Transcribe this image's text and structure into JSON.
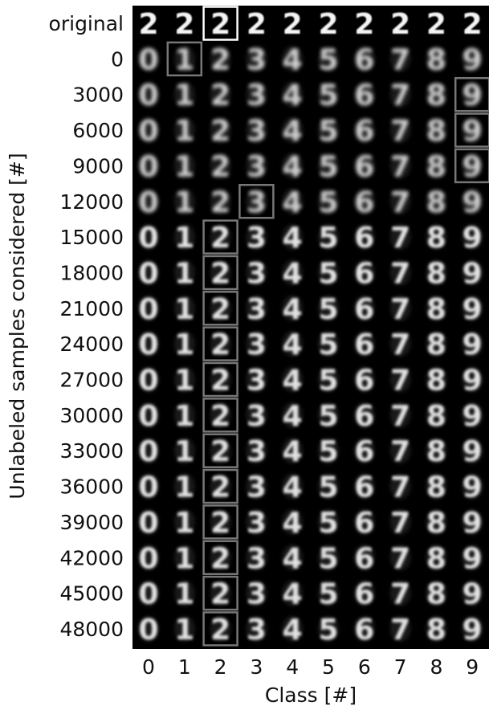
{
  "chart_data": {
    "type": "heatmap",
    "title": "",
    "xlabel": "Class [#]",
    "ylabel": "Unlabeled samples considered [#]",
    "x_categories": [
      "0",
      "1",
      "2",
      "3",
      "4",
      "5",
      "6",
      "7",
      "8",
      "9"
    ],
    "y_categories": [
      "original",
      "0",
      "3000",
      "6000",
      "9000",
      "12000",
      "15000",
      "18000",
      "21000",
      "24000",
      "27000",
      "30000",
      "33000",
      "36000",
      "39000",
      "42000",
      "45000",
      "48000"
    ],
    "cell_content": "grayscale handwritten digit image for each class",
    "background_color": "#000000",
    "highlight_colors": {
      "original": "#ffffff",
      "other": "#777777"
    },
    "highlighted_cells": [
      {
        "row": "original",
        "class": "2"
      },
      {
        "row": "0",
        "class": "1"
      },
      {
        "row": "3000",
        "class": "9"
      },
      {
        "row": "6000",
        "class": "9"
      },
      {
        "row": "9000",
        "class": "9"
      },
      {
        "row": "12000",
        "class": "3"
      },
      {
        "row": "15000",
        "class": "2"
      },
      {
        "row": "18000",
        "class": "2"
      },
      {
        "row": "21000",
        "class": "2"
      },
      {
        "row": "24000",
        "class": "2"
      },
      {
        "row": "27000",
        "class": "2"
      },
      {
        "row": "30000",
        "class": "2"
      },
      {
        "row": "33000",
        "class": "2"
      },
      {
        "row": "36000",
        "class": "2"
      },
      {
        "row": "39000",
        "class": "2"
      },
      {
        "row": "42000",
        "class": "2"
      },
      {
        "row": "45000",
        "class": "2"
      },
      {
        "row": "48000",
        "class": "2"
      }
    ],
    "cell_digits": [
      [
        "2",
        "2",
        "2",
        "2",
        "2",
        "2",
        "2",
        "2",
        "2",
        "2"
      ],
      [
        "0",
        "1",
        "2",
        "3",
        "4",
        "5",
        "6",
        "7",
        "8",
        "9"
      ],
      [
        "0",
        "1",
        "2",
        "3",
        "4",
        "5",
        "6",
        "7",
        "8",
        "9"
      ],
      [
        "0",
        "1",
        "2",
        "3",
        "4",
        "5",
        "6",
        "7",
        "8",
        "9"
      ],
      [
        "0",
        "1",
        "2",
        "3",
        "4",
        "5",
        "6",
        "7",
        "8",
        "9"
      ],
      [
        "0",
        "1",
        "2",
        "3",
        "4",
        "5",
        "6",
        "7",
        "8",
        "9"
      ],
      [
        "0",
        "1",
        "2",
        "3",
        "4",
        "5",
        "6",
        "7",
        "8",
        "9"
      ],
      [
        "0",
        "1",
        "2",
        "3",
        "4",
        "5",
        "6",
        "7",
        "8",
        "9"
      ],
      [
        "0",
        "1",
        "2",
        "3",
        "4",
        "5",
        "6",
        "7",
        "8",
        "9"
      ],
      [
        "0",
        "1",
        "2",
        "3",
        "4",
        "5",
        "6",
        "7",
        "8",
        "9"
      ],
      [
        "0",
        "1",
        "2",
        "3",
        "4",
        "5",
        "6",
        "7",
        "8",
        "9"
      ],
      [
        "0",
        "1",
        "2",
        "3",
        "4",
        "5",
        "6",
        "7",
        "8",
        "9"
      ],
      [
        "0",
        "1",
        "2",
        "3",
        "4",
        "5",
        "6",
        "7",
        "8",
        "9"
      ],
      [
        "0",
        "1",
        "2",
        "3",
        "4",
        "5",
        "6",
        "7",
        "8",
        "9"
      ],
      [
        "0",
        "1",
        "2",
        "3",
        "4",
        "5",
        "6",
        "7",
        "8",
        "9"
      ],
      [
        "0",
        "1",
        "2",
        "3",
        "4",
        "5",
        "6",
        "7",
        "8",
        "9"
      ],
      [
        "0",
        "1",
        "2",
        "3",
        "4",
        "5",
        "6",
        "7",
        "8",
        "9"
      ],
      [
        "0",
        "1",
        "2",
        "3",
        "4",
        "5",
        "6",
        "7",
        "8",
        "9"
      ]
    ]
  }
}
